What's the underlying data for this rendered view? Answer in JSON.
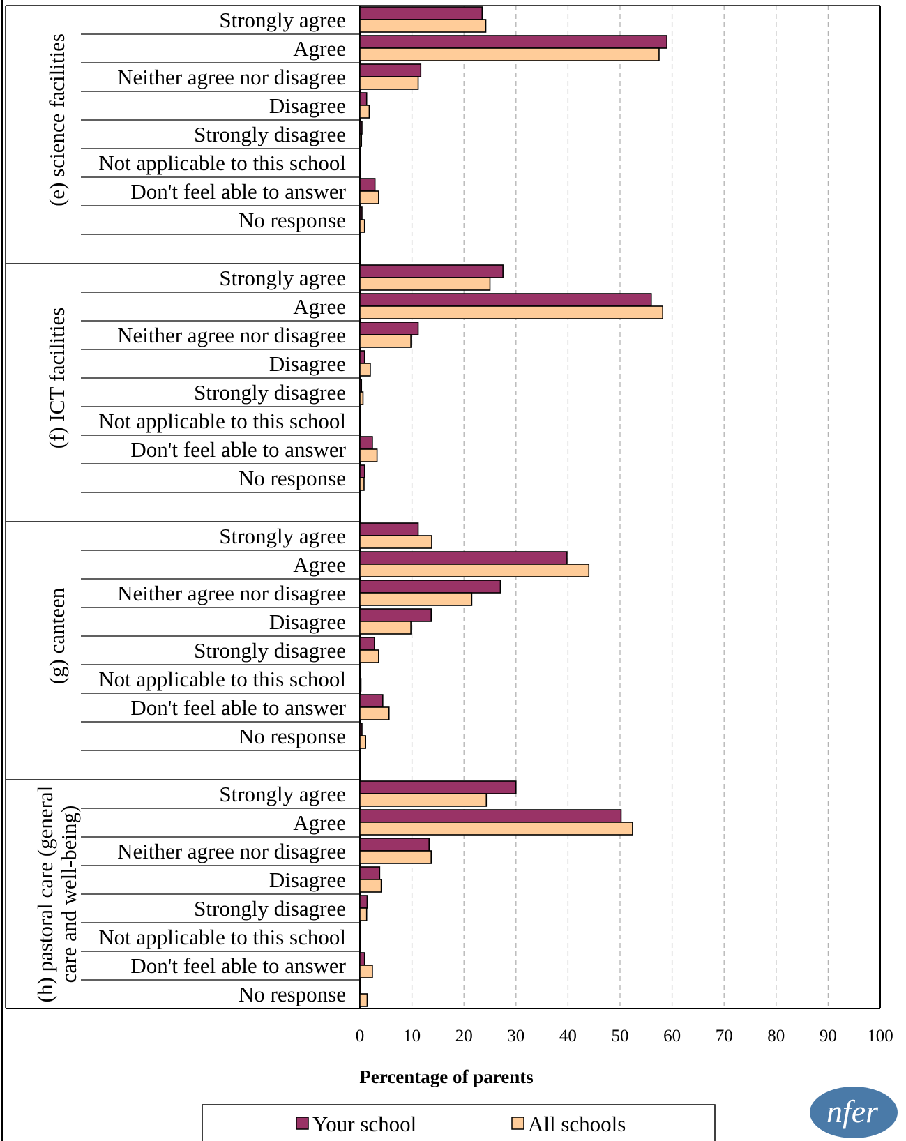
{
  "chart_data": {
    "type": "bar",
    "orientation": "horizontal",
    "xlabel": "Percentage of parents",
    "xlim": [
      0,
      100
    ],
    "xticks": [
      0,
      10,
      20,
      30,
      40,
      50,
      60,
      70,
      80,
      90,
      100
    ],
    "grid": "vertical dashed",
    "legend_position": "bottom",
    "colors": {
      "your_school": "#993366",
      "all_schools": "#FFCC99"
    },
    "categories": [
      "Strongly agree",
      "Agree",
      "Neither agree nor disagree",
      "Disagree",
      "Strongly disagree",
      "Not applicable to this school",
      "Don't feel able to answer",
      "No response"
    ],
    "series": [
      {
        "name": "Your school",
        "color": "#993366"
      },
      {
        "name": "All schools",
        "color": "#FFCC99"
      }
    ],
    "groups": [
      {
        "label_lines": [
          "(e) science facilities"
        ],
        "your_school": [
          23.5,
          59,
          11.7,
          1.3,
          0.4,
          0,
          2.9,
          0.4
        ],
        "all_schools": [
          24.2,
          57.5,
          11.2,
          1.8,
          0.3,
          0.1,
          3.6,
          0.9
        ]
      },
      {
        "label_lines": [
          "(f) ICT facilities"
        ],
        "your_school": [
          27.5,
          56,
          11.2,
          0.9,
          0.3,
          0,
          2.4,
          0.9
        ],
        "all_schools": [
          25,
          58.2,
          9.8,
          2,
          0.6,
          0.1,
          3.3,
          0.8
        ]
      },
      {
        "label_lines": [
          "(g) canteen"
        ],
        "your_school": [
          11.2,
          39.8,
          27,
          13.7,
          2.8,
          0.1,
          4.4,
          0.4
        ],
        "all_schools": [
          13.8,
          44,
          21.5,
          9.8,
          3.6,
          0.2,
          5.6,
          1.1
        ]
      },
      {
        "label_lines": [
          "(h) pastoral care (general",
          "care and well-being)"
        ],
        "your_school": [
          30,
          50.2,
          13.3,
          3.8,
          1.4,
          0.1,
          0.9,
          0
        ],
        "all_schools": [
          24.3,
          52.4,
          13.7,
          4.1,
          1.3,
          0.1,
          2.4,
          1.4
        ]
      }
    ]
  },
  "logo": {
    "text": "nfer"
  }
}
